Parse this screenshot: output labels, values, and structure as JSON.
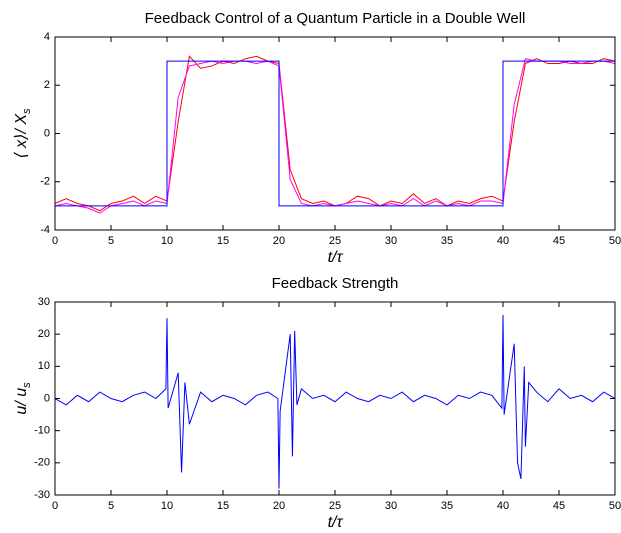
{
  "chart_data": [
    {
      "type": "line",
      "title": "Feedback Control of a Quantum Particle in a Double Well",
      "xlabel": "t/τ",
      "ylabel": {
        "main": "⟨ x⟩/ X",
        "sub": "s"
      },
      "x": [
        0,
        1,
        2,
        3,
        4,
        5,
        6,
        7,
        8,
        9,
        10,
        10,
        11,
        12,
        13,
        14,
        15,
        16,
        17,
        18,
        19,
        20,
        20,
        21,
        22,
        23,
        24,
        25,
        26,
        27,
        28,
        29,
        30,
        31,
        32,
        33,
        34,
        35,
        36,
        37,
        38,
        39,
        40,
        40,
        41,
        42,
        43,
        44,
        45,
        46,
        47,
        48,
        49,
        50
      ],
      "xlim": [
        0,
        50
      ],
      "xticks": [
        0,
        5,
        10,
        15,
        20,
        25,
        30,
        35,
        40,
        45,
        50
      ],
      "ylim": [
        -4,
        4
      ],
      "yticks": [
        -4,
        -2,
        0,
        2,
        4
      ],
      "series": [
        {
          "color": "#ff0000",
          "values": [
            -2.9,
            -2.7,
            -2.9,
            -3.0,
            -3.2,
            -2.9,
            -2.8,
            -2.6,
            -2.9,
            -2.6,
            -2.8,
            -2.8,
            0.5,
            3.2,
            2.7,
            2.8,
            3.0,
            2.9,
            3.1,
            3.2,
            3.0,
            2.9,
            2.9,
            -1.5,
            -2.7,
            -2.9,
            -2.8,
            -3.0,
            -2.9,
            -2.6,
            -2.7,
            -3.0,
            -2.8,
            -2.9,
            -2.5,
            -2.9,
            -2.7,
            -3.0,
            -2.8,
            -2.9,
            -2.7,
            -2.6,
            -2.8,
            -2.8,
            0.5,
            2.9,
            3.1,
            2.9,
            2.9,
            3.0,
            2.9,
            2.9,
            3.1,
            3.0
          ]
        },
        {
          "color": "#ff00ff",
          "values": [
            -3.0,
            -2.9,
            -3.0,
            -3.1,
            -3.3,
            -3.0,
            -2.9,
            -2.8,
            -3.0,
            -2.8,
            -2.9,
            -2.9,
            1.5,
            2.8,
            2.9,
            3.0,
            2.9,
            3.0,
            3.0,
            2.9,
            3.0,
            2.8,
            2.8,
            -1.9,
            -2.9,
            -3.0,
            -2.9,
            -3.0,
            -2.9,
            -2.8,
            -2.9,
            -3.0,
            -2.9,
            -3.0,
            -2.7,
            -3.0,
            -2.8,
            -3.0,
            -2.9,
            -3.0,
            -2.8,
            -2.8,
            -2.9,
            -2.9,
            1.2,
            3.1,
            3.0,
            3.0,
            3.0,
            2.9,
            2.9,
            3.0,
            3.0,
            2.9
          ]
        },
        {
          "color": "#0000ff",
          "values": [
            -3,
            -3,
            -3,
            -3,
            -3,
            -3,
            -3,
            -3,
            -3,
            -3,
            -3,
            3,
            3,
            3,
            3,
            3,
            3,
            3,
            3,
            3,
            3,
            3,
            -3,
            -3,
            -3,
            -3,
            -3,
            -3,
            -3,
            -3,
            -3,
            -3,
            -3,
            -3,
            -3,
            -3,
            -3,
            -3,
            -3,
            -3,
            -3,
            -3,
            -3,
            3,
            3,
            3,
            3,
            3,
            3,
            3,
            3,
            3,
            3,
            3
          ]
        }
      ]
    },
    {
      "type": "line",
      "title": "Feedback Strength",
      "xlabel": "t/τ",
      "ylabel": {
        "main": "u/ u",
        "sub": "s"
      },
      "x": [
        0,
        1,
        2,
        3,
        4,
        5,
        6,
        7,
        8,
        9,
        9.9,
        10,
        10.1,
        11,
        11.3,
        11.6,
        12,
        13,
        14,
        15,
        16,
        17,
        18,
        19,
        19.9,
        20,
        20.1,
        21,
        21.2,
        21.4,
        21.6,
        22,
        23,
        24,
        25,
        26,
        27,
        28,
        29,
        30,
        31,
        32,
        33,
        34,
        35,
        36,
        37,
        38,
        39,
        39.9,
        40,
        40.1,
        41,
        41.3,
        41.6,
        41.9,
        42,
        42.3,
        43,
        44,
        45,
        46,
        47,
        48,
        49,
        50
      ],
      "xlim": [
        0,
        50
      ],
      "xticks": [
        0,
        5,
        10,
        15,
        20,
        25,
        30,
        35,
        40,
        45,
        50
      ],
      "ylim": [
        -30,
        30
      ],
      "yticks": [
        -30,
        -20,
        -10,
        0,
        10,
        20,
        30
      ],
      "series": [
        {
          "color": "#0000ff",
          "values": [
            0,
            -2,
            1,
            -1,
            2,
            0,
            -1,
            1,
            2,
            0,
            3,
            25,
            -3,
            8,
            -23,
            5,
            -8,
            2,
            -1,
            1,
            0,
            -2,
            1,
            2,
            0,
            -28,
            -4,
            20,
            -18,
            21,
            -2,
            3,
            0,
            1,
            -1,
            2,
            0,
            -1,
            1,
            0,
            2,
            -1,
            1,
            0,
            -2,
            1,
            0,
            2,
            1,
            -3,
            26,
            -5,
            17,
            -20,
            -25,
            10,
            -15,
            5,
            2,
            -1,
            3,
            0,
            1,
            -1,
            2,
            0
          ]
        }
      ]
    }
  ]
}
